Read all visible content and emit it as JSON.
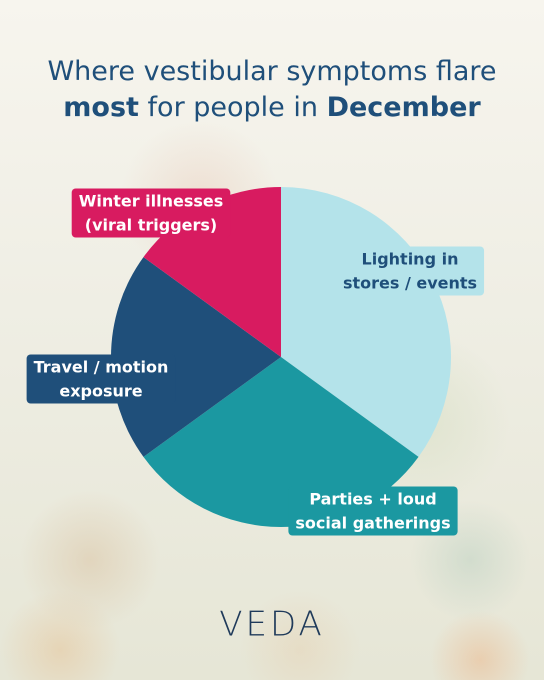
{
  "chart_data": {
    "type": "pie",
    "title_lines": [
      [
        {
          "text": "Where vestibular symptoms flare",
          "bold": false
        }
      ],
      [
        {
          "text": "most",
          "bold": true
        },
        {
          "text": " for people in ",
          "bold": false
        },
        {
          "text": "December",
          "bold": true
        }
      ]
    ],
    "categories": [
      [
        "Lighting in",
        "stores / events"
      ],
      [
        "Parties + loud",
        "social gatherings"
      ],
      [
        "Travel / motion",
        "exposure"
      ],
      [
        "Winter illnesses",
        "(viral triggers)"
      ]
    ],
    "values": [
      35,
      30,
      20,
      15
    ],
    "colors": [
      "#b4e3ea",
      "#1b98a1",
      "#1f4f7a",
      "#d81b60"
    ],
    "label_text_colors": [
      "#1f4f7a",
      "#ffffff",
      "#ffffff",
      "#ffffff"
    ],
    "logo": "VEDA"
  }
}
